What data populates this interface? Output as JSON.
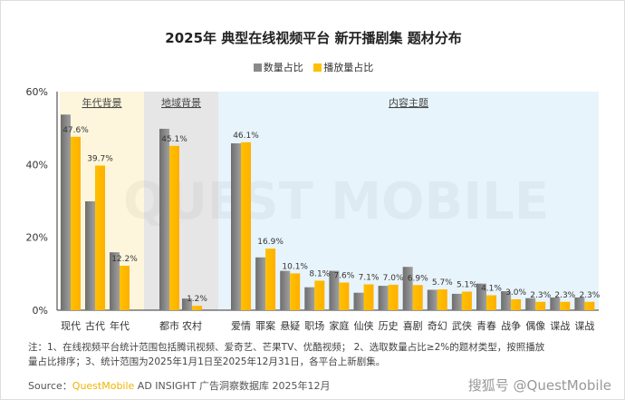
{
  "chart_data": {
    "type": "bar",
    "title": "2025年 典型在线视频平台 新开播剧集 题材分布",
    "ylim": [
      0,
      60
    ],
    "yticks": [
      "0%",
      "20%",
      "40%",
      "60%"
    ],
    "ytick_values": [
      0,
      20,
      40,
      60
    ],
    "legend_position": "top-center",
    "series": [
      {
        "name": "数量占比",
        "color": "#8a8a8a"
      },
      {
        "name": "播放量占比",
        "color": "#ffc000"
      }
    ],
    "groups": [
      {
        "label": "年代背景",
        "bg": "#fdf6dc",
        "categories": [
          "现代",
          "古代",
          "年代"
        ],
        "count": [
          53.7,
          29.9,
          15.9
        ],
        "play": [
          47.6,
          39.7,
          12.2
        ],
        "labels": [
          "47.6%",
          "39.7%",
          "12.2%"
        ]
      },
      {
        "label": "地域背景",
        "bg": "#e6e6e6",
        "categories": [
          "都市",
          "农村"
        ],
        "count": [
          49.8,
          3.2
        ],
        "play": [
          45.1,
          1.2
        ],
        "labels": [
          "45.1%",
          "1.2%"
        ]
      },
      {
        "label": "内容主题",
        "bg": "#e8f4fb",
        "categories": [
          "爱情",
          "罪案",
          "悬疑",
          "职场",
          "家庭",
          "仙侠",
          "历史",
          "喜剧",
          "奇幻",
          "武侠",
          "青春",
          "战争",
          "偶像",
          "谍战",
          "谍战"
        ],
        "count": [
          45.8,
          14.5,
          10.8,
          6.3,
          10.8,
          4.8,
          6.7,
          11.9,
          5.6,
          4.5,
          7.3,
          5.2,
          3.3,
          3.5,
          3.5
        ],
        "play": [
          46.1,
          16.9,
          10.1,
          8.1,
          7.6,
          7.1,
          7.0,
          6.9,
          5.7,
          5.1,
          4.1,
          3.0,
          2.3,
          2.3,
          2.3
        ],
        "labels": [
          "46.1%",
          "16.9%",
          "10.1%",
          "8.1%",
          "7.6%",
          "7.1%",
          "7.0%",
          "6.9%",
          "5.7%",
          "5.1%",
          "4.1%",
          "3.0%",
          "2.3%",
          "2.3%",
          "2.3%"
        ]
      }
    ]
  },
  "note": {
    "line1": "注：1、在线视频平台统计范围包括腾讯视频、爱奇艺、芒果TV、优酷视频； 2、选取数量占比≥2%的题材类型，按照播放",
    "line2": "量占比排序；3、统计范围为2025年1月1日至2025年12月31日，各平台上新剧集。"
  },
  "source": {
    "prefix": "Source：",
    "brand": "QuestMobile",
    "rest": " AD INSIGHT 广告洞察数据库 2025年12月"
  },
  "watermark": {
    "text": "搜狐号 @QuestMobile",
    "background": "QUEST MOBILE"
  }
}
